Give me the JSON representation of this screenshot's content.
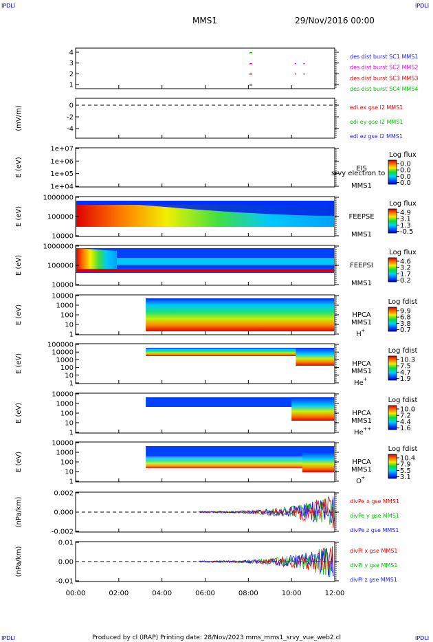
{
  "corner_label": "IPDLI",
  "header": {
    "spacecraft": "MMS1",
    "date": "29/Nov/2016 00:00"
  },
  "footer": {
    "text": "Produced by cl (IRAP)   Printing date: 28/Nov/2023   mms_mms1_srvy_vue_web2.cl"
  },
  "time_axis": {
    "ticks": [
      "00:00",
      "02:00",
      "04:00",
      "06:00",
      "08:00",
      "10:00",
      "12:00"
    ],
    "range_hours": [
      0,
      12
    ]
  },
  "panels": [
    {
      "id": "burst",
      "ylabel": "",
      "yticks": [
        "4",
        "3",
        "2",
        "1"
      ],
      "legend": [
        {
          "text": "des dist burst SC1 MMS1",
          "color": "#1a1aff"
        },
        {
          "text": "des dist burst SC2 MMS2",
          "color": "#e000e0"
        },
        {
          "text": "des dist burst SC3 MMS3",
          "color": "#e00000"
        },
        {
          "text": "des dist burst SC4 MMS4",
          "color": "#00c000"
        }
      ],
      "bursts_hours": [
        8.05,
        10.15,
        10.55
      ]
    },
    {
      "id": "edi",
      "ylabel": "(mV/m)",
      "yticks": [
        "0",
        "-2",
        "-4"
      ],
      "legend": [
        {
          "text": "edi ex gse l2 MMS1",
          "color": "#e00000"
        },
        {
          "text": "edi ey gse l2 MMS1",
          "color": "#00c000"
        },
        {
          "text": "edi ez gse l2 MMS1",
          "color": "#1a1aff"
        }
      ]
    },
    {
      "id": "eis",
      "ylabel": "E (eV)",
      "yticks": [
        "1e+07",
        "1e+06",
        "1e+05",
        "1e+04"
      ],
      "label1": "EIS",
      "label2": "MMS1",
      "overlay": "srvy electron to",
      "cbar_title": "Log flux",
      "cbar_ticks": [
        "0.0",
        "0.0",
        "0.0",
        "0.0"
      ]
    },
    {
      "id": "feepse",
      "ylabel": "E (eV)",
      "yticks": [
        "1000000",
        "100000",
        "10000"
      ],
      "label1": "FEEPSE",
      "label2": "MMS1",
      "cbar_title": "Log flux",
      "cbar_ticks": [
        "4.9",
        "3.1",
        "1.3",
        "-0.5"
      ]
    },
    {
      "id": "feepsi",
      "ylabel": "E (eV)",
      "yticks": [
        "1000000",
        "100000",
        "10000"
      ],
      "label1": "FEEPSI",
      "label2": "MMS1",
      "cbar_title": "Log flux",
      "cbar_ticks": [
        "4.6",
        "3.2",
        "1.7",
        "0.2"
      ]
    },
    {
      "id": "hpca_h",
      "ylabel": "E (eV)",
      "yticks": [
        "10000",
        "1000",
        "100",
        "10",
        "1"
      ],
      "label1": "HPCA",
      "label2": "MMS1",
      "species": "H",
      "charge": "+",
      "cbar_title": "Log fdist",
      "cbar_ticks": [
        "9.9",
        "6.8",
        "3.8",
        "0.7"
      ]
    },
    {
      "id": "hpca_he",
      "ylabel": "E (eV)",
      "yticks": [
        "100000",
        "10000",
        "1000",
        "100",
        "10",
        "1"
      ],
      "label1": "HPCA",
      "label2": "MMS1",
      "species": "He",
      "charge": "+",
      "cbar_title": "Log fdist",
      "cbar_ticks": [
        "10.3",
        "7.5",
        "4.7",
        "1.9"
      ]
    },
    {
      "id": "hpca_he2",
      "ylabel": "E (eV)",
      "yticks": [
        "10000",
        "1000",
        "100",
        "10",
        "1"
      ],
      "label1": "HPCA",
      "label2": "MMS1",
      "species": "He",
      "charge": "++",
      "cbar_title": "Log fdist",
      "cbar_ticks": [
        "10.0",
        "7.2",
        "4.4",
        "1.6"
      ]
    },
    {
      "id": "hpca_o",
      "ylabel": "E (eV)",
      "yticks": [
        "10000",
        "1000",
        "100",
        "10",
        "1"
      ],
      "label1": "HPCA",
      "label2": "MMS1",
      "species": "O",
      "charge": "+",
      "cbar_title": "Log fdist",
      "cbar_ticks": [
        "10.4",
        "7.9",
        "5.5",
        "3.1"
      ]
    },
    {
      "id": "divpe",
      "ylabel": "(nPa/km)",
      "yticks": [
        "0.002",
        "0.000",
        "-0.002"
      ],
      "legend": [
        {
          "text": "divPe x gse MMS1",
          "color": "#e00000"
        },
        {
          "text": "divPe y gse MMS1",
          "color": "#00c000"
        },
        {
          "text": "divPe z gse MMS1",
          "color": "#1a1aff"
        }
      ]
    },
    {
      "id": "divpi",
      "ylabel": "(nPa/km)",
      "yticks": [
        "0.01",
        "0.00",
        "-0.01"
      ],
      "legend": [
        {
          "text": "divPi x gse MMS1",
          "color": "#e00000"
        },
        {
          "text": "divPi y gse MMS1",
          "color": "#00c000"
        },
        {
          "text": "divPi z gse MMS1",
          "color": "#1a1aff"
        }
      ]
    }
  ],
  "chart_data": {
    "type": "heatmap",
    "x": {
      "label": "",
      "unit": "hours UT",
      "range": [
        0,
        12
      ],
      "ticks": [
        "00:00",
        "02:00",
        "04:00",
        "06:00",
        "08:00",
        "10:00",
        "12:00"
      ]
    },
    "spectrograms": [
      {
        "name": "FEEPSE",
        "start_hour": 0.0,
        "ylim": [
          10000,
          1000000
        ]
      },
      {
        "name": "FEEPSI",
        "start_hour": 0.0,
        "ylim": [
          10000,
          1000000
        ]
      },
      {
        "name": "HPCA H+",
        "start_hour": 3.25,
        "ylim": [
          1,
          10000
        ]
      },
      {
        "name": "HPCA He+",
        "start_hour": 3.25,
        "ylim": [
          1,
          100000
        ]
      },
      {
        "name": "HPCA He++",
        "start_hour": 3.25,
        "ylim": [
          1,
          10000
        ]
      },
      {
        "name": "HPCA O+",
        "start_hour": 3.25,
        "ylim": [
          1,
          10000
        ]
      }
    ],
    "lines": [
      {
        "name": "divPe",
        "start_hour": 5.7,
        "ylim": [
          -0.003,
          0.003
        ]
      },
      {
        "name": "divPi",
        "start_hour": 5.7,
        "ylim": [
          -0.015,
          0.015
        ]
      }
    ]
  }
}
